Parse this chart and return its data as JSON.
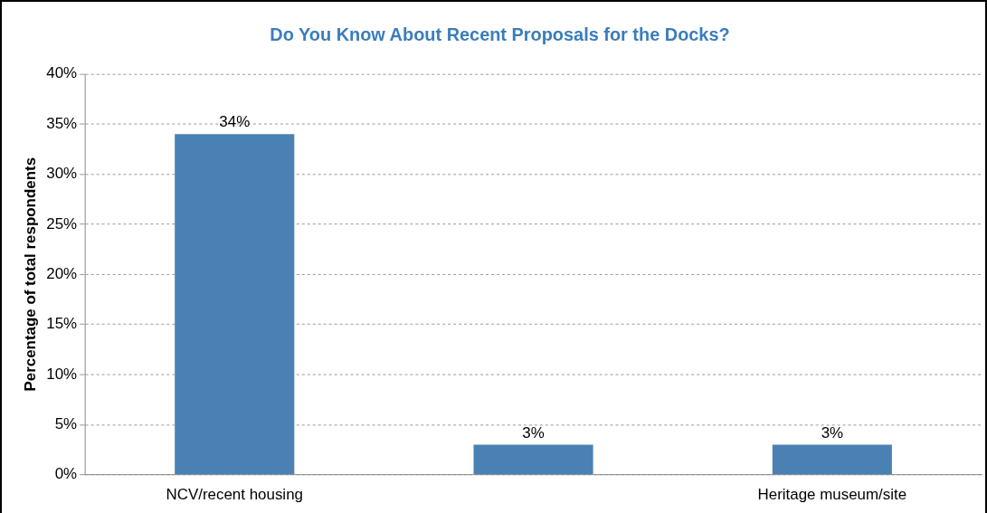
{
  "chart_data": {
    "type": "bar",
    "title": "Do You Know About Recent Proposals for the Docks?",
    "ylabel": "Percentage of total respondents",
    "categories": [
      "NCV/recent housing",
      null,
      "Heritage museum/site"
    ],
    "values": [
      34,
      3,
      3
    ],
    "color": "#4a81b4",
    "value_labels": [
      "34%",
      "3%",
      "3%"
    ],
    "ylim": [
      0,
      40
    ],
    "yticks": [
      {
        "value": 0,
        "label": "0%"
      },
      {
        "value": 5,
        "label": "5%"
      },
      {
        "value": 10,
        "label": "10%"
      },
      {
        "value": 15,
        "label": "15%"
      },
      {
        "value": 20,
        "label": "20%"
      },
      {
        "value": 25,
        "label": "25%"
      },
      {
        "value": 30,
        "label": "30%"
      },
      {
        "value": 35,
        "label": "35%"
      },
      {
        "value": 40,
        "label": "40%"
      }
    ],
    "grid": "y",
    "legend": false
  }
}
